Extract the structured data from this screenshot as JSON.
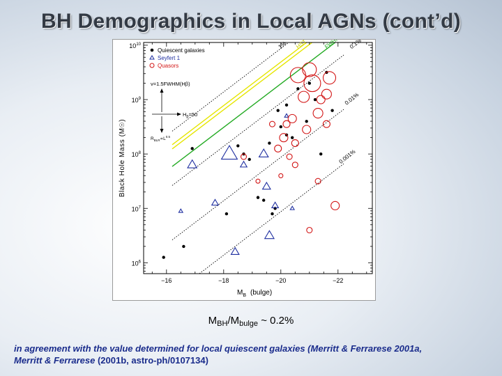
{
  "slide": {
    "title": "BH Demographics in Local AGNs (cont’d)",
    "ratio": {
      "m1": "M",
      "s1": "BH",
      "slash": "/M",
      "s2": "bulge",
      "rest": " ~ 0.2%"
    },
    "note_part1": "in agreement with the value determined for local quiescent galaxies (Merritt & Ferrarese 2001a,",
    "note_part2": "Merritt & Ferrarese ",
    "note_part3": "(2001b, astro-ph/0107134)"
  },
  "chart_data": {
    "type": "scatter",
    "xlabel": "M",
    "xlabel_sub": "B",
    "xlabel_suffix": "(bulge)",
    "ylabel": "Black Hole Mass (M",
    "ylabel_suffix": ")",
    "xlim": [
      -15.2,
      -23.2
    ],
    "ylim_log10": [
      5.8,
      10.05
    ],
    "x_ticks": [
      -16,
      -18,
      -20,
      -22
    ],
    "x_tick_labels": [
      "−16",
      "−18",
      "−20",
      "−22"
    ],
    "y_ticks_log10": [
      6,
      7,
      8,
      9,
      10
    ],
    "y_tick_labels": [
      "10",
      "10",
      "10",
      "10",
      "10"
    ],
    "y_tick_exponents": [
      "6",
      "7",
      "8",
      "9",
      "10"
    ],
    "legend": {
      "position": "top-left",
      "entries": [
        {
          "label": "Quiescent galaxies",
          "marker": "dot",
          "color": "#000000"
        },
        {
          "label": "Seyfert 1",
          "marker": "triangle",
          "color": "#1f2fa0"
        },
        {
          "label": "Quasors",
          "marker": "circle",
          "color": "#d21414"
        }
      ]
    },
    "annotations": {
      "velocity": "v=1.5FWHM(Hβ)",
      "hb": "H",
      "hb_sub": "β",
      "hb_rest": "=50",
      "rblr": "R",
      "rblr_sub": "BLR",
      "rblr_rest": "∝L",
      "rblr_exp": "0.5"
    },
    "ratio_lines": [
      {
        "label": "1%",
        "log_fraction": -2,
        "style": "dotted",
        "color": "#000000"
      },
      {
        "label": "HST",
        "log_fraction": -2.25,
        "style": "solid",
        "color": "#e6e600"
      },
      {
        "label": "FWHM",
        "log_fraction": -2.65,
        "style": "solid",
        "color": "#22aa22"
      },
      {
        "label": "0.1%",
        "log_fraction": -3,
        "style": "dotted",
        "color": "#000000"
      },
      {
        "label": "0.01%",
        "log_fraction": -4,
        "style": "dotted",
        "color": "#000000"
      },
      {
        "label": "0.001%",
        "log_fraction": -5,
        "style": "dotted",
        "color": "#000000"
      }
    ],
    "series": [
      {
        "name": "Quiescent galaxies",
        "marker": "dot",
        "color": "#000000",
        "points": [
          {
            "x": -15.9,
            "logM": 6.1
          },
          {
            "x": -16.6,
            "logM": 6.3
          },
          {
            "x": -16.9,
            "logM": 8.1
          },
          {
            "x": -18.1,
            "logM": 6.9
          },
          {
            "x": -18.5,
            "logM": 8.15
          },
          {
            "x": -18.7,
            "logM": 8.0
          },
          {
            "x": -18.9,
            "logM": 7.9
          },
          {
            "x": -19.2,
            "logM": 7.2
          },
          {
            "x": -19.4,
            "logM": 7.15
          },
          {
            "x": -19.6,
            "logM": 8.2
          },
          {
            "x": -19.7,
            "logM": 6.9
          },
          {
            "x": -19.9,
            "logM": 8.8
          },
          {
            "x": -20.0,
            "logM": 8.5
          },
          {
            "x": -20.2,
            "logM": 8.9
          },
          {
            "x": -20.4,
            "logM": 8.3
          },
          {
            "x": -20.6,
            "logM": 9.2
          },
          {
            "x": -20.9,
            "logM": 8.6
          },
          {
            "x": -21.0,
            "logM": 9.3
          },
          {
            "x": -21.2,
            "logM": 9.0
          },
          {
            "x": -21.6,
            "logM": 9.5
          },
          {
            "x": -21.8,
            "logM": 8.8
          },
          {
            "x": -20.2,
            "logM": 8.35
          },
          {
            "x": -19.8,
            "logM": 7.0
          },
          {
            "x": -21.4,
            "logM": 8.0
          }
        ]
      },
      {
        "name": "Seyfert 1",
        "marker": "triangle",
        "color": "#1f2fa0",
        "points": [
          {
            "x": -16.5,
            "logM": 6.95,
            "size": 3
          },
          {
            "x": -16.9,
            "logM": 7.8,
            "size": 7
          },
          {
            "x": -17.7,
            "logM": 7.1,
            "size": 5
          },
          {
            "x": -18.2,
            "logM": 8.0,
            "size": 12
          },
          {
            "x": -18.4,
            "logM": 6.2,
            "size": 6
          },
          {
            "x": -18.7,
            "logM": 7.8,
            "size": 5
          },
          {
            "x": -19.4,
            "logM": 8.0,
            "size": 7
          },
          {
            "x": -19.5,
            "logM": 7.4,
            "size": 6
          },
          {
            "x": -19.6,
            "logM": 6.5,
            "size": 7
          },
          {
            "x": -19.8,
            "logM": 7.05,
            "size": 5
          },
          {
            "x": -20.2,
            "logM": 8.7,
            "size": 3
          },
          {
            "x": -20.4,
            "logM": 7.0,
            "size": 3
          }
        ]
      },
      {
        "name": "Quasors",
        "marker": "circle",
        "color": "#d21414",
        "points": [
          {
            "x": -19.2,
            "logM": 7.5,
            "size": 3
          },
          {
            "x": -18.7,
            "logM": 7.95,
            "size": 4
          },
          {
            "x": -19.7,
            "logM": 8.55,
            "size": 4
          },
          {
            "x": -19.9,
            "logM": 8.1,
            "size": 5
          },
          {
            "x": -20.1,
            "logM": 8.3,
            "size": 6
          },
          {
            "x": -20.2,
            "logM": 8.55,
            "size": 5
          },
          {
            "x": -20.3,
            "logM": 7.95,
            "size": 4
          },
          {
            "x": -20.4,
            "logM": 8.65,
            "size": 6
          },
          {
            "x": -20.5,
            "logM": 8.2,
            "size": 5
          },
          {
            "x": -20.6,
            "logM": 9.45,
            "size": 11
          },
          {
            "x": -20.8,
            "logM": 9.05,
            "size": 8
          },
          {
            "x": -20.9,
            "logM": 8.45,
            "size": 6
          },
          {
            "x": -21.0,
            "logM": 9.55,
            "size": 10
          },
          {
            "x": -21.1,
            "logM": 9.3,
            "size": 12
          },
          {
            "x": -21.3,
            "logM": 8.75,
            "size": 7
          },
          {
            "x": -21.4,
            "logM": 9.0,
            "size": 6
          },
          {
            "x": -21.6,
            "logM": 9.1,
            "size": 7
          },
          {
            "x": -21.6,
            "logM": 8.55,
            "size": 5
          },
          {
            "x": -21.7,
            "logM": 9.4,
            "size": 9
          },
          {
            "x": -21.3,
            "logM": 7.5,
            "size": 4
          },
          {
            "x": -21.9,
            "logM": 7.05,
            "size": 6
          },
          {
            "x": -21.0,
            "logM": 6.6,
            "size": 4
          },
          {
            "x": -20.5,
            "logM": 7.8,
            "size": 4
          },
          {
            "x": -20.0,
            "logM": 7.6,
            "size": 3
          }
        ]
      }
    ]
  }
}
